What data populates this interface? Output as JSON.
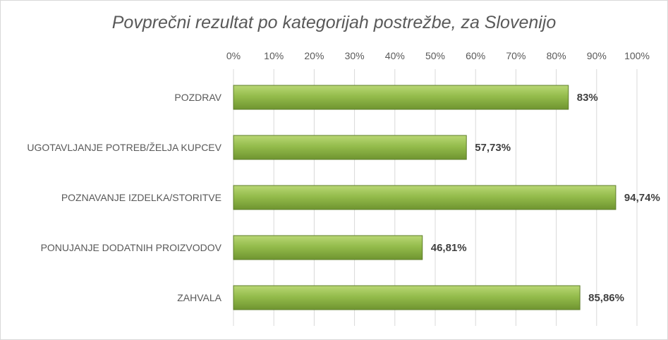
{
  "chart_data": {
    "type": "bar",
    "orientation": "horizontal",
    "title": "Povprečni rezultat po kategorijah postrežbe, za Slovenijo",
    "categories": [
      "POZDRAV",
      "UGOTAVLJANJE POTREB/ŽELJA KUPCEV",
      "POZNAVANJE IZDELKA/STORITVE",
      "PONUJANJE DODATNIH PROIZVODOV",
      "ZAHVALA"
    ],
    "values": [
      83,
      57.73,
      94.74,
      46.81,
      85.86
    ],
    "data_labels": [
      "83%",
      "57,73%",
      "94,74%",
      "46,81%",
      "85,86%"
    ],
    "x_ticks": [
      "0%",
      "10%",
      "20%",
      "30%",
      "40%",
      "50%",
      "60%",
      "70%",
      "80%",
      "90%",
      "100%"
    ],
    "xlim": [
      0,
      100
    ],
    "x_axis_position": "top",
    "grid": true,
    "bar_color": "#8db543",
    "xlabel": "",
    "ylabel": ""
  }
}
